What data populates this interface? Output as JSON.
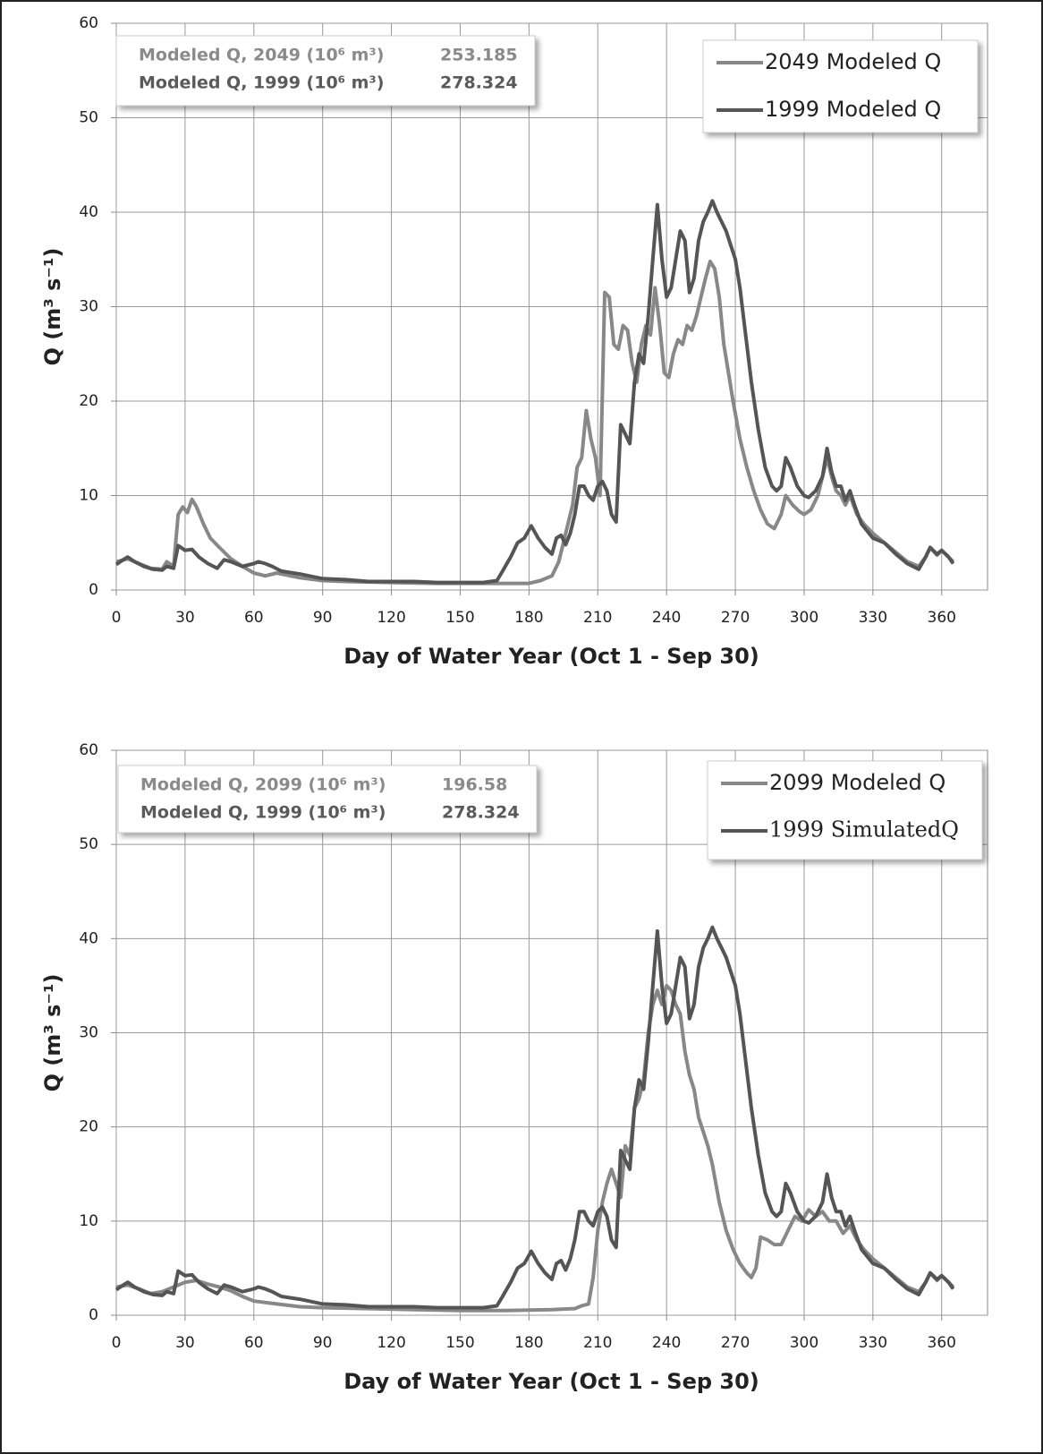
{
  "chart_data": [
    {
      "type": "line",
      "xlabel": "Day of Water Year (Oct 1 - Sep 30)",
      "ylabel": "Q (m³ s⁻¹)",
      "xlim": [
        0,
        380
      ],
      "ylim": [
        0,
        60
      ],
      "xticks": [
        0,
        30,
        60,
        90,
        120,
        150,
        180,
        210,
        240,
        270,
        300,
        330,
        360
      ],
      "yticks": [
        0,
        10,
        20,
        30,
        40,
        50,
        60
      ],
      "grid": true,
      "legend": "upper right",
      "stats": [
        {
          "label": "Modeled Q, 2049 (10⁶ m³)",
          "value": 253.185,
          "color": "#8a8a8a"
        },
        {
          "label": "Modeled Q, 1999 (10⁶ m³)",
          "value": 278.324,
          "color": "#5a5a5a"
        }
      ],
      "series": [
        {
          "name": "2049 Modeled Q",
          "color": "#888888",
          "x": [
            0,
            5,
            10,
            15,
            20,
            22,
            25,
            27,
            29,
            31,
            33,
            35,
            38,
            41,
            45,
            50,
            55,
            60,
            65,
            70,
            80,
            90,
            100,
            120,
            140,
            160,
            180,
            185,
            190,
            193,
            196,
            199,
            201,
            203,
            205,
            207,
            209,
            211,
            213,
            215,
            217,
            219,
            221,
            223,
            225,
            227,
            229,
            231,
            233,
            235,
            237,
            239,
            241,
            243,
            245,
            247,
            249,
            251,
            253,
            255,
            257,
            259,
            261,
            263,
            265,
            267,
            269,
            272,
            275,
            278,
            281,
            284,
            287,
            290,
            292,
            295,
            298,
            300,
            303,
            306,
            308,
            310,
            312,
            314,
            316,
            318,
            320,
            323,
            326,
            330,
            335,
            340,
            345,
            350,
            353,
            355,
            358,
            360,
            363,
            365
          ],
          "values": [
            3,
            3.3,
            2.8,
            2.3,
            2.2,
            3,
            2.5,
            8,
            8.8,
            8.2,
            9.6,
            8.8,
            7,
            5.5,
            4.5,
            3.3,
            2.5,
            1.8,
            1.5,
            1.8,
            1.3,
            1.0,
            0.9,
            0.8,
            0.7,
            0.7,
            0.7,
            1,
            1.5,
            3,
            6,
            9,
            13,
            14,
            19,
            16,
            14,
            10,
            31.5,
            31,
            26,
            25.5,
            28,
            27.5,
            24,
            22,
            26,
            28,
            27,
            32,
            28,
            23,
            22.5,
            25,
            26.5,
            26,
            28,
            27.5,
            29,
            31,
            33,
            34.8,
            34,
            31,
            26,
            23,
            20,
            16,
            13,
            10.5,
            8.5,
            7,
            6.5,
            8,
            10,
            9,
            8.3,
            8,
            8.5,
            10,
            12,
            14,
            12,
            10.5,
            10,
            9,
            10,
            8,
            7,
            6,
            5,
            4,
            3,
            2.5,
            3.5,
            4.5,
            3.7,
            4.2,
            3.5,
            3
          ]
        },
        {
          "name": "1999 Modeled Q",
          "color": "#555555",
          "x": [
            0,
            3,
            5,
            8,
            12,
            16,
            20,
            22,
            25,
            27,
            30,
            33,
            36,
            40,
            44,
            47,
            50,
            55,
            60,
            62,
            65,
            68,
            72,
            80,
            90,
            100,
            110,
            120,
            130,
            140,
            150,
            160,
            166,
            168,
            172,
            175,
            178,
            181,
            184,
            187,
            190,
            192,
            194,
            196,
            198,
            200,
            202,
            204,
            206,
            208,
            210,
            212,
            214,
            216,
            218,
            220,
            222,
            224,
            226,
            228,
            230,
            232,
            234,
            236,
            238,
            240,
            242,
            244,
            246,
            248,
            250,
            252,
            254,
            256,
            258,
            260,
            262,
            264,
            266,
            268,
            270,
            272,
            274,
            277,
            280,
            283,
            286,
            288,
            290,
            292,
            294,
            297,
            300,
            302,
            305,
            308,
            310,
            312,
            314,
            316,
            318,
            320,
            322,
            325,
            330,
            335,
            340,
            345,
            350,
            353,
            355,
            358,
            360,
            363,
            365
          ],
          "values": [
            2.7,
            3.2,
            3.5,
            3,
            2.5,
            2.2,
            2.1,
            2.5,
            2.3,
            4.7,
            4.2,
            4.3,
            3.5,
            2.8,
            2.3,
            3.2,
            3,
            2.5,
            2.8,
            3,
            2.8,
            2.5,
            2,
            1.7,
            1.2,
            1.1,
            0.9,
            0.9,
            0.9,
            0.8,
            0.8,
            0.8,
            1,
            1.8,
            3.5,
            5,
            5.5,
            6.8,
            5.5,
            4.5,
            3.8,
            5.5,
            5.8,
            4.8,
            6,
            8,
            11,
            11,
            10,
            9.5,
            11,
            11.5,
            10.5,
            8,
            7.2,
            17.5,
            16.5,
            15.5,
            22,
            25,
            24,
            29,
            35,
            40.8,
            35,
            31,
            32,
            35,
            38,
            37,
            31.5,
            33,
            37,
            39,
            40,
            41.2,
            40,
            39,
            38,
            36.5,
            35,
            32,
            28,
            22,
            17,
            13,
            11,
            10.5,
            11,
            14,
            13,
            11,
            10,
            9.8,
            10.5,
            12,
            15,
            12.5,
            11,
            11,
            9.5,
            10.5,
            9,
            7,
            5.5,
            5,
            3.8,
            2.8,
            2.2,
            3.5,
            4.5,
            3.8,
            4.2,
            3.5,
            2.8
          ]
        }
      ]
    },
    {
      "type": "line",
      "xlabel": "Day of Water Year (Oct 1 - Sep 30)",
      "ylabel": "Q (m³ s⁻¹)",
      "xlim": [
        0,
        380
      ],
      "ylim": [
        0,
        60
      ],
      "xticks": [
        0,
        30,
        60,
        90,
        120,
        150,
        180,
        210,
        240,
        270,
        300,
        330,
        360
      ],
      "yticks": [
        0,
        10,
        20,
        30,
        40,
        50,
        60
      ],
      "grid": true,
      "legend": "upper right",
      "stats": [
        {
          "label": "Modeled Q, 2099 (10⁶ m³)",
          "value": 196.58,
          "color": "#8a8a8a"
        },
        {
          "label": "Modeled Q, 1999 (10⁶ m³)",
          "value": 278.324,
          "color": "#5a5a5a"
        }
      ],
      "series": [
        {
          "name": "2099 Modeled Q",
          "color": "#888888",
          "x": [
            0,
            5,
            10,
            15,
            20,
            25,
            30,
            35,
            40,
            45,
            50,
            55,
            60,
            70,
            80,
            90,
            110,
            130,
            150,
            170,
            190,
            200,
            203,
            206,
            208,
            210,
            212,
            214,
            216,
            218,
            220,
            222,
            224,
            226,
            228,
            230,
            232,
            234,
            236,
            238,
            240,
            242,
            244,
            246,
            248,
            250,
            252,
            254,
            256,
            258,
            260,
            263,
            266,
            269,
            272,
            275,
            277,
            279,
            281,
            284,
            287,
            290,
            293,
            296,
            299,
            302,
            305,
            308,
            311,
            314,
            317,
            320,
            323,
            326,
            330,
            335,
            340,
            345,
            350,
            353,
            355,
            358,
            360,
            363,
            365
          ],
          "values": [
            3,
            3.2,
            2.8,
            2.3,
            2.5,
            3,
            3.5,
            3.7,
            3.3,
            3,
            2.6,
            2,
            1.5,
            1.2,
            0.9,
            0.8,
            0.7,
            0.6,
            0.5,
            0.5,
            0.6,
            0.7,
            1,
            1.2,
            4,
            9,
            12,
            14,
            15.5,
            14,
            12.5,
            18,
            17,
            22,
            23,
            25,
            30,
            33,
            34.5,
            33,
            35,
            34.5,
            33,
            32,
            28,
            25.5,
            24,
            21,
            19.5,
            18,
            16,
            12,
            9,
            7,
            5.5,
            4.5,
            4,
            5,
            8.3,
            8,
            7.5,
            7.5,
            9,
            10.5,
            10,
            11.2,
            10.5,
            11,
            10,
            10,
            8.7,
            9.5,
            8,
            7,
            6,
            5,
            4,
            3,
            2.5,
            3.5,
            4.5,
            3.7,
            4.2,
            3.5,
            3
          ]
        },
        {
          "name": "1999 SimulatedQ",
          "color": "#555555",
          "x": [
            0,
            3,
            5,
            8,
            12,
            16,
            20,
            22,
            25,
            27,
            30,
            33,
            36,
            40,
            44,
            47,
            50,
            55,
            60,
            62,
            65,
            68,
            72,
            80,
            90,
            100,
            110,
            120,
            130,
            140,
            150,
            160,
            166,
            168,
            172,
            175,
            178,
            181,
            184,
            187,
            190,
            192,
            194,
            196,
            198,
            200,
            202,
            204,
            206,
            208,
            210,
            212,
            214,
            216,
            218,
            220,
            222,
            224,
            226,
            228,
            230,
            232,
            234,
            236,
            238,
            240,
            242,
            244,
            246,
            248,
            250,
            252,
            254,
            256,
            258,
            260,
            262,
            264,
            266,
            268,
            270,
            272,
            274,
            277,
            280,
            283,
            286,
            288,
            290,
            292,
            294,
            297,
            300,
            302,
            305,
            308,
            310,
            312,
            314,
            316,
            318,
            320,
            322,
            325,
            330,
            335,
            340,
            345,
            350,
            353,
            355,
            358,
            360,
            363,
            365
          ],
          "values": [
            2.7,
            3.2,
            3.5,
            3,
            2.5,
            2.2,
            2.1,
            2.5,
            2.3,
            4.7,
            4.2,
            4.3,
            3.5,
            2.8,
            2.3,
            3.2,
            3,
            2.5,
            2.8,
            3,
            2.8,
            2.5,
            2,
            1.7,
            1.2,
            1.1,
            0.9,
            0.9,
            0.9,
            0.8,
            0.8,
            0.8,
            1,
            1.8,
            3.5,
            5,
            5.5,
            6.8,
            5.5,
            4.5,
            3.8,
            5.5,
            5.8,
            4.8,
            6,
            8,
            11,
            11,
            10,
            9.5,
            11,
            11.5,
            10.5,
            8,
            7.2,
            17.5,
            16.5,
            15.5,
            22,
            25,
            24,
            29,
            35,
            40.8,
            35,
            31,
            32,
            35,
            38,
            37,
            31.5,
            33,
            37,
            39,
            40,
            41.2,
            40,
            39,
            38,
            36.5,
            35,
            32,
            28,
            22,
            17,
            13,
            11,
            10.5,
            11,
            14,
            13,
            11,
            10,
            9.8,
            10.5,
            12,
            15,
            12.5,
            11,
            11,
            9.5,
            10.5,
            9,
            7,
            5.5,
            5,
            3.8,
            2.8,
            2.2,
            3.5,
            4.5,
            3.8,
            4.2,
            3.5,
            2.8
          ]
        }
      ]
    }
  ]
}
